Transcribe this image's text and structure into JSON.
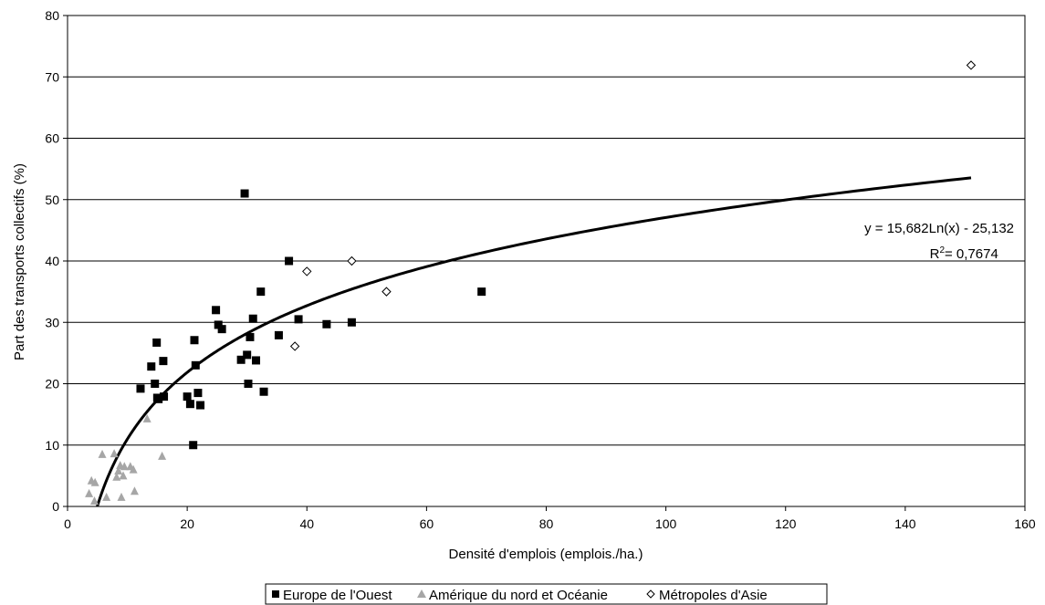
{
  "chart_data": {
    "type": "scatter",
    "xlabel": "Densité d'emplois (emplois./ha.)",
    "ylabel": "Part des transports collectifs (%)",
    "xlim": [
      0,
      160
    ],
    "ylim": [
      0,
      80
    ],
    "x_ticks": [
      "0",
      "20",
      "40",
      "60",
      "80",
      "100",
      "120",
      "140",
      "160"
    ],
    "y_ticks": [
      "0",
      "10",
      "20",
      "30",
      "40",
      "50",
      "60",
      "70",
      "80"
    ],
    "grid": "horizontal",
    "legend_position": "bottom",
    "series": [
      {
        "name": "Europe de l'Ouest",
        "marker": "square",
        "color": "#000000",
        "points": [
          [
            12.2,
            19.2
          ],
          [
            14.0,
            22.8
          ],
          [
            14.6,
            20.0
          ],
          [
            14.9,
            26.7
          ],
          [
            15.0,
            17.7
          ],
          [
            15.2,
            17.5
          ],
          [
            16.0,
            23.7
          ],
          [
            16.1,
            17.9
          ],
          [
            20.0,
            17.9
          ],
          [
            20.5,
            16.7
          ],
          [
            21.0,
            10.0
          ],
          [
            21.2,
            27.1
          ],
          [
            21.4,
            23.0
          ],
          [
            21.8,
            18.5
          ],
          [
            22.2,
            16.5
          ],
          [
            24.8,
            32.0
          ],
          [
            25.2,
            29.6
          ],
          [
            25.8,
            28.9
          ],
          [
            29.0,
            23.9
          ],
          [
            29.6,
            51.0
          ],
          [
            30.0,
            24.7
          ],
          [
            30.2,
            20.0
          ],
          [
            30.5,
            27.6
          ],
          [
            31.0,
            30.6
          ],
          [
            31.5,
            23.8
          ],
          [
            32.3,
            35.0
          ],
          [
            32.8,
            18.7
          ],
          [
            35.3,
            27.9
          ],
          [
            37.0,
            40.0
          ],
          [
            38.6,
            30.5
          ],
          [
            43.3,
            29.7
          ],
          [
            47.5,
            30.0
          ],
          [
            69.2,
            35.0
          ]
        ]
      },
      {
        "name": "Amérique du nord et Océanie",
        "marker": "triangle",
        "color": "#a6a6a6",
        "points": [
          [
            3.6,
            2.1
          ],
          [
            4.0,
            4.2
          ],
          [
            4.5,
            0.9
          ],
          [
            4.6,
            3.9
          ],
          [
            5.8,
            8.5
          ],
          [
            6.5,
            1.5
          ],
          [
            7.8,
            8.6
          ],
          [
            8.2,
            4.8
          ],
          [
            8.5,
            5.8
          ],
          [
            8.8,
            6.7
          ],
          [
            9.0,
            1.5
          ],
          [
            9.3,
            5.0
          ],
          [
            9.5,
            6.5
          ],
          [
            10.5,
            6.5
          ],
          [
            11.0,
            6.0
          ],
          [
            11.2,
            2.5
          ],
          [
            13.3,
            14.3
          ],
          [
            15.8,
            8.2
          ]
        ]
      },
      {
        "name": "Métropoles d'Asie",
        "marker": "diamond",
        "color": "#000000",
        "points": [
          [
            38.0,
            26.1
          ],
          [
            40.0,
            38.3
          ],
          [
            47.5,
            40.0
          ],
          [
            53.3,
            35.0
          ],
          [
            151.0,
            71.9
          ]
        ]
      }
    ],
    "trendline": {
      "type": "logarithmic",
      "a": 15.682,
      "b": -25.132,
      "x_range": [
        4.97,
        151
      ],
      "equation": "y = 15,682Ln(x) - 25,132",
      "r2_label": "R",
      "r2_sup": "2",
      "r2_value": " = 0,7674"
    }
  }
}
